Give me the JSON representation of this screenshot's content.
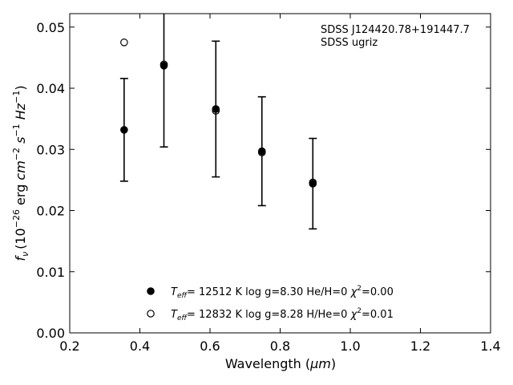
{
  "chart_data": {
    "type": "scatter",
    "xlabel_main": "Wavelength (",
    "xlabel_unit": "μm",
    "xlabel_close": ")",
    "ylabel_parts": {
      "f": "f",
      "nu": "ν",
      "pre": "(10",
      "exp1": "−26",
      "erg": " erg ",
      "cm": "cm",
      "exp2": "−2",
      "s": " s",
      "exp3": "−1",
      "hz": " Hz",
      "exp4": "−1",
      "close": ")"
    },
    "xlim": [
      0.2,
      1.4
    ],
    "ylim": [
      0.0,
      0.0522
    ],
    "x_ticks": [
      "0.2",
      "0.4",
      "0.6",
      "0.8",
      "1.0",
      "1.2",
      "1.4"
    ],
    "x_tick_values": [
      0.2,
      0.4,
      0.6,
      0.8,
      1.0,
      1.2,
      1.4
    ],
    "y_ticks": [
      "0.00",
      "0.01",
      "0.02",
      "0.03",
      "0.04",
      "0.05"
    ],
    "y_tick_values": [
      0.0,
      0.01,
      0.02,
      0.03,
      0.04,
      0.05
    ],
    "annotation_lines": [
      "SDSS J124420.78+191447.7",
      "SDSS ugriz"
    ],
    "observed": {
      "x": [
        0.3551,
        0.4686,
        0.6166,
        0.748,
        0.8932
      ],
      "y": [
        0.0332,
        0.0437,
        0.0366,
        0.0297,
        0.0244
      ],
      "err": [
        0.0084,
        0.0133,
        0.0111,
        0.0089,
        0.0074
      ]
    },
    "series": [
      {
        "marker": "filled",
        "x": [
          0.3551,
          0.4686,
          0.6166,
          0.748,
          0.8932
        ],
        "y": [
          0.0332,
          0.0437,
          0.0366,
          0.0297,
          0.0244
        ],
        "label": {
          "t": "T",
          "sub": "eff",
          "rest": "= 12512 K  log g=8.30  He/H=0  ",
          "chi": "χ",
          "sup": "2",
          "val": "=0.00"
        }
      },
      {
        "marker": "open",
        "x": [
          0.3551,
          0.4686,
          0.6166,
          0.748,
          0.8932
        ],
        "y": [
          0.0475,
          0.0439,
          0.0363,
          0.0295,
          0.0246
        ],
        "label": {
          "t": "T",
          "sub": "eff",
          "rest": "= 12832 K  log g=8.28  H/He=0  ",
          "chi": "χ",
          "sup": "2",
          "val": "=0.01"
        }
      }
    ],
    "legend_position": "lower-center",
    "grid": false
  }
}
